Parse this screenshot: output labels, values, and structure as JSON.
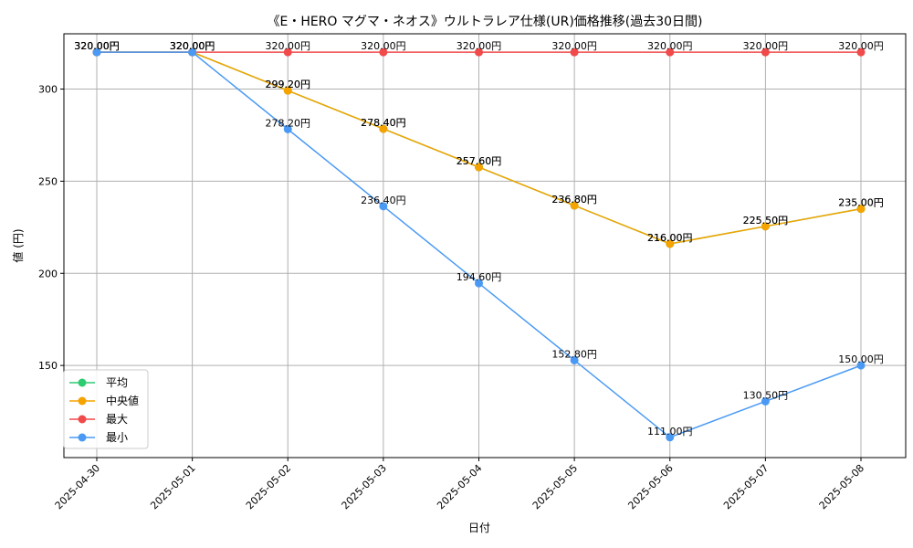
{
  "chart_data": {
    "type": "line",
    "title": "《E・HERO マグマ・ネオス》ウルトラレア仕様(UR)価格推移(過去30日間)",
    "xlabel": "日付",
    "ylabel": "値 (円)",
    "categories": [
      "2025-04-30",
      "2025-05-01",
      "2025-05-02",
      "2025-05-03",
      "2025-05-04",
      "2025-05-05",
      "2025-05-06",
      "2025-05-07",
      "2025-05-08"
    ],
    "ylim": [
      100,
      330
    ],
    "yticks": [
      150,
      200,
      250,
      300
    ],
    "grid": true,
    "legend_position": "lower-left",
    "label_suffix": "円",
    "series": [
      {
        "name": "平均",
        "color": "#2ecc71",
        "values": [
          320.0,
          320.0,
          299.2,
          278.4,
          257.6,
          236.8,
          216.0,
          225.5,
          235.0
        ]
      },
      {
        "name": "中央値",
        "color": "#f5a300",
        "values": [
          320.0,
          320.0,
          299.2,
          278.4,
          257.6,
          236.8,
          216.0,
          225.5,
          235.0
        ]
      },
      {
        "name": "最大",
        "color": "#f04a4a",
        "values": [
          320.0,
          320.0,
          320.0,
          320.0,
          320.0,
          320.0,
          320.0,
          320.0,
          320.0
        ]
      },
      {
        "name": "最小",
        "color": "#4a9af5",
        "values": [
          320.0,
          320.0,
          278.2,
          236.4,
          194.6,
          152.8,
          111.0,
          130.5,
          150.0
        ]
      }
    ]
  }
}
